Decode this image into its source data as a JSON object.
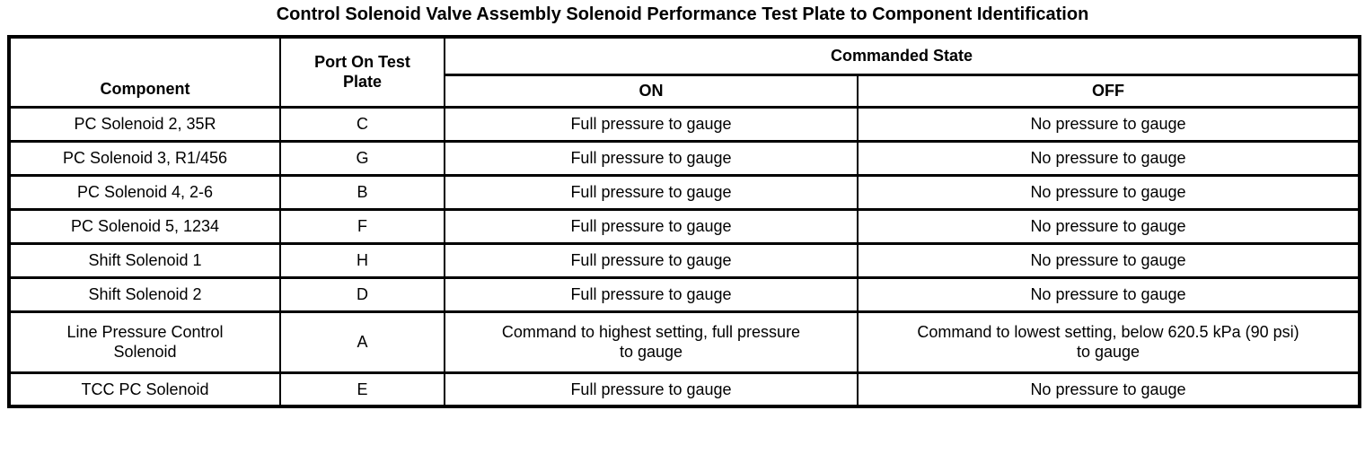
{
  "title": "Control Solenoid Valve Assembly Solenoid Performance Test Plate to Component Identification",
  "table": {
    "headers": {
      "component": "Component",
      "port": "Port On Test Plate",
      "commanded_state": "Commanded State",
      "on": "ON",
      "off": "OFF"
    },
    "rows": [
      {
        "component": "PC Solenoid 2, 35R",
        "port": "C",
        "on": "Full pressure to gauge",
        "off": "No pressure to gauge"
      },
      {
        "component": "PC Solenoid 3, R1/456",
        "port": "G",
        "on": "Full pressure to gauge",
        "off": "No pressure to gauge"
      },
      {
        "component": "PC Solenoid 4, 2-6",
        "port": "B",
        "on": "Full pressure to gauge",
        "off": "No pressure to gauge"
      },
      {
        "component": "PC Solenoid 5, 1234",
        "port": "F",
        "on": "Full pressure to gauge",
        "off": "No pressure to gauge"
      },
      {
        "component": "Shift Solenoid 1",
        "port": "H",
        "on": "Full pressure to gauge",
        "off": "No pressure to gauge"
      },
      {
        "component": "Shift Solenoid 2",
        "port": "D",
        "on": "Full pressure to gauge",
        "off": "No pressure to gauge"
      },
      {
        "component": "Line Pressure Control Solenoid",
        "port": "A",
        "on": "Command to highest setting, full pressure to gauge",
        "off": "Command to lowest setting, below 620.5 kPa (90 psi) to gauge"
      },
      {
        "component": "TCC PC Solenoid",
        "port": "E",
        "on": "Full pressure to gauge",
        "off": "No pressure to gauge"
      }
    ]
  },
  "colors": {
    "text": "#000000",
    "border": "#000000",
    "background": "#ffffff"
  }
}
